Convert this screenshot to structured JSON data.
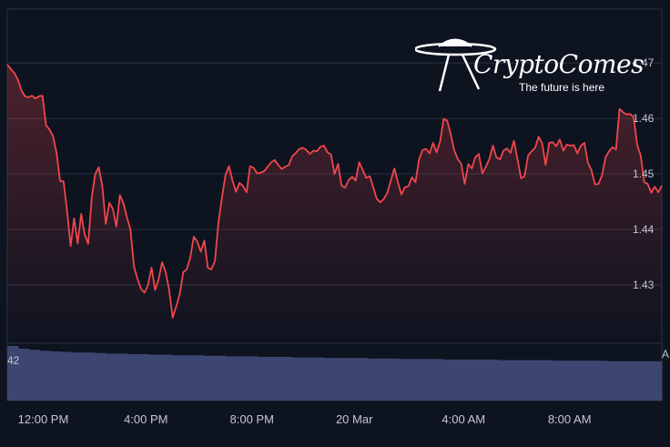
{
  "brand": {
    "name": "CryptoComes",
    "tagline": "The future is here"
  },
  "colors": {
    "background": "#0e1320",
    "line": "#f0464c",
    "grid": "#2a3142",
    "volume": "#3d4670",
    "text": "#c3c7d0"
  },
  "volume_label": "42",
  "volume_label_right": "A",
  "chart_data": {
    "type": "line",
    "title": "",
    "xlabel": "",
    "ylabel": "",
    "ylim": [
      1.4195,
      1.4797
    ],
    "grid": true,
    "y_ticks": [
      "1.47",
      "1.46",
      "1.45",
      "1.44",
      "1.43"
    ],
    "x_ticks": [
      "12:00 PM",
      "4:00 PM",
      "8:00 PM",
      "20 Mar",
      "4:00 AM",
      "8:00 AM"
    ],
    "x_tick_positions": [
      0.4,
      4.4,
      8.4,
      12.4,
      16.4,
      20.4
    ],
    "x_range": [
      0,
      24.7
    ],
    "series": [
      {
        "values": [
          1.4697,
          1.4689,
          1.4682,
          1.467,
          1.4651,
          1.464,
          1.4638,
          1.4641,
          1.4636,
          1.464,
          1.4641,
          1.4588,
          1.458,
          1.4568,
          1.4538,
          1.4487,
          1.4487,
          1.4433,
          1.437,
          1.442,
          1.4375,
          1.4428,
          1.4391,
          1.4374,
          1.4458,
          1.45,
          1.4512,
          1.4478,
          1.441,
          1.4448,
          1.4437,
          1.4405,
          1.4462,
          1.4447,
          1.4422,
          1.44,
          1.4333,
          1.4311,
          1.4293,
          1.4286,
          1.43,
          1.4331,
          1.4291,
          1.431,
          1.4341,
          1.4323,
          1.4291,
          1.4241,
          1.4261,
          1.4283,
          1.4323,
          1.4328,
          1.4349,
          1.4387,
          1.4378,
          1.436,
          1.438,
          1.4331,
          1.4328,
          1.4343,
          1.4412,
          1.4457,
          1.4498,
          1.4514,
          1.4488,
          1.4468,
          1.4484,
          1.4478,
          1.4467,
          1.4514,
          1.4511,
          1.4501,
          1.4502,
          1.4505,
          1.4513,
          1.4521,
          1.4525,
          1.4516,
          1.4509,
          1.4513,
          1.4516,
          1.4532,
          1.4538,
          1.4545,
          1.4547,
          1.4543,
          1.4536,
          1.4542,
          1.4541,
          1.4549,
          1.4551,
          1.4539,
          1.4535,
          1.45,
          1.4518,
          1.4479,
          1.4475,
          1.4489,
          1.4495,
          1.4488,
          1.4521,
          1.4507,
          1.4493,
          1.4496,
          1.4476,
          1.4455,
          1.4449,
          1.4455,
          1.4466,
          1.4488,
          1.451,
          1.4485,
          1.4463,
          1.4476,
          1.4478,
          1.4494,
          1.4485,
          1.4526,
          1.4543,
          1.4545,
          1.4537,
          1.4556,
          1.4539,
          1.4559,
          1.4599,
          1.4596,
          1.4572,
          1.4543,
          1.4527,
          1.4518,
          1.4482,
          1.4518,
          1.451,
          1.453,
          1.4536,
          1.4501,
          1.4513,
          1.4527,
          1.4551,
          1.453,
          1.4526,
          1.4542,
          1.4546,
          1.4538,
          1.456,
          1.4526,
          1.4492,
          1.4496,
          1.4533,
          1.4541,
          1.4547,
          1.4567,
          1.4555,
          1.4516,
          1.4556,
          1.4557,
          1.455,
          1.4562,
          1.4542,
          1.4553,
          1.4551,
          1.4552,
          1.4537,
          1.4551,
          1.4556,
          1.452,
          1.4507,
          1.4481,
          1.4482,
          1.4497,
          1.453,
          1.4541,
          1.4548,
          1.4544,
          1.4617,
          1.4611,
          1.4607,
          1.4608,
          1.4602,
          1.4553,
          1.4533,
          1.4485,
          1.4482,
          1.4466,
          1.4477,
          1.4467,
          1.4479
        ]
      }
    ],
    "volume": [
      1.0,
      0.95,
      0.93,
      0.91,
      0.9,
      0.89,
      0.88,
      0.88,
      0.87,
      0.86,
      0.86,
      0.85,
      0.85,
      0.84,
      0.84,
      0.83,
      0.83,
      0.83,
      0.82,
      0.82,
      0.81,
      0.81,
      0.81,
      0.8,
      0.8,
      0.8,
      0.79,
      0.79,
      0.79,
      0.78,
      0.78,
      0.78,
      0.78,
      0.77,
      0.77,
      0.77,
      0.76,
      0.76,
      0.76,
      0.76,
      0.75,
      0.75,
      0.75,
      0.75,
      0.75,
      0.74,
      0.74,
      0.74,
      0.74,
      0.74,
      0.73,
      0.73,
      0.73,
      0.73,
      0.73,
      0.72,
      0.72,
      0.72,
      0.72,
      0.72
    ]
  }
}
